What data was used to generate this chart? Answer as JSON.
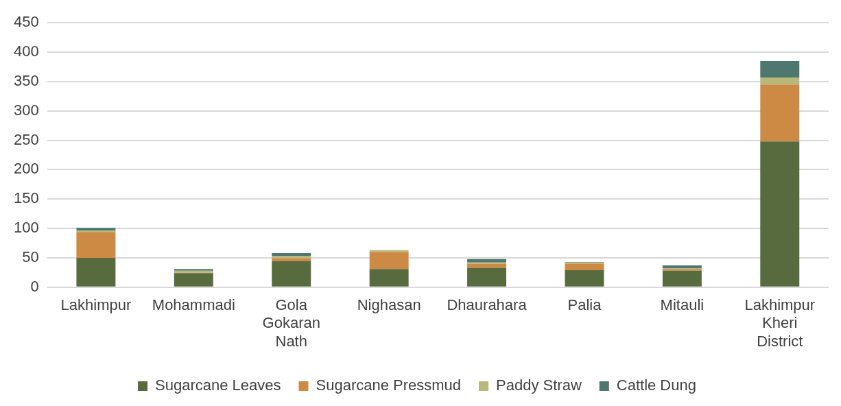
{
  "chart_data": {
    "type": "bar",
    "stacked": true,
    "categories": [
      "Lakhimpur",
      "Mohammadi",
      "Gola Gokaran Nath",
      "Nighasan",
      "Dhaurahara",
      "Palia",
      "Mitauli",
      "Lakhimpur Kheri District"
    ],
    "series": [
      {
        "name": "Sugarcane Leaves",
        "color": "#586b3f",
        "values": [
          50,
          24,
          44,
          31,
          33,
          29,
          28,
          248
        ]
      },
      {
        "name": "Sugarcane Pressmud",
        "color": "#cc8a45",
        "values": [
          44,
          1,
          5,
          29,
          7,
          11,
          3,
          97
        ]
      },
      {
        "name": "Paddy Straw",
        "color": "#b8b87a",
        "values": [
          2,
          3,
          4,
          3,
          2,
          2,
          1,
          12
        ]
      },
      {
        "name": "Cattle Dung",
        "color": "#4e7770",
        "values": [
          5,
          3,
          5,
          null,
          6,
          1,
          5,
          28
        ]
      }
    ],
    "ylim": [
      0,
      450
    ],
    "yticks": [
      0,
      50,
      100,
      150,
      200,
      250,
      300,
      350,
      400,
      450
    ],
    "grid": "y",
    "legend": "bottom"
  }
}
